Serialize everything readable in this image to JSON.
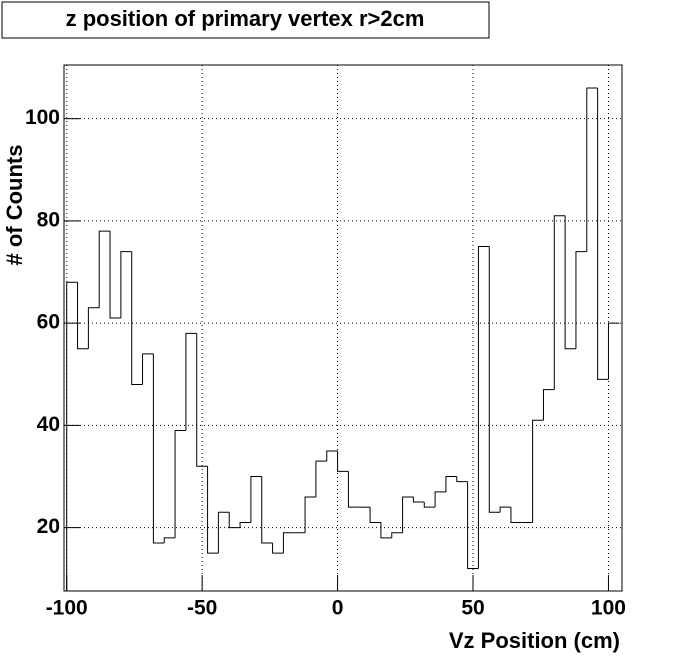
{
  "chart_data": {
    "type": "histogram",
    "title": "z position of primary vertex r>2cm",
    "x_label": "Vz Position (cm)",
    "y_label": "# of Counts",
    "bins": [
      -100,
      -96,
      -92,
      -88,
      -84,
      -80,
      -76,
      -72,
      -68,
      -64,
      -60,
      -56,
      -52,
      -48,
      -44,
      -40,
      -36,
      -32,
      -28,
      -24,
      -20,
      -16,
      -12,
      -8,
      -4,
      0,
      4,
      8,
      12,
      16,
      20,
      24,
      28,
      32,
      36,
      40,
      44,
      48,
      52,
      56,
      60,
      64,
      68,
      72,
      76,
      80,
      84,
      88,
      92,
      96,
      100,
      104
    ],
    "values": [
      68,
      55,
      63,
      78,
      61,
      74,
      48,
      54,
      17,
      18,
      39,
      58,
      32,
      15,
      23,
      20,
      21,
      30,
      17,
      15,
      19,
      19,
      26,
      33,
      35,
      31,
      24,
      24,
      21,
      18,
      19,
      26,
      25,
      24,
      27,
      30,
      29,
      12,
      75,
      23,
      24,
      21,
      21,
      41,
      47,
      81,
      55,
      74,
      106,
      49,
      60
    ],
    "color": "#000000",
    "xlim": [
      -101,
      105
    ],
    "ylim": [
      7.6,
      110.5
    ],
    "xticks": [
      -100,
      -50,
      0,
      50,
      100
    ],
    "yticks": [
      20,
      40,
      60,
      80,
      100
    ],
    "grid": true
  }
}
